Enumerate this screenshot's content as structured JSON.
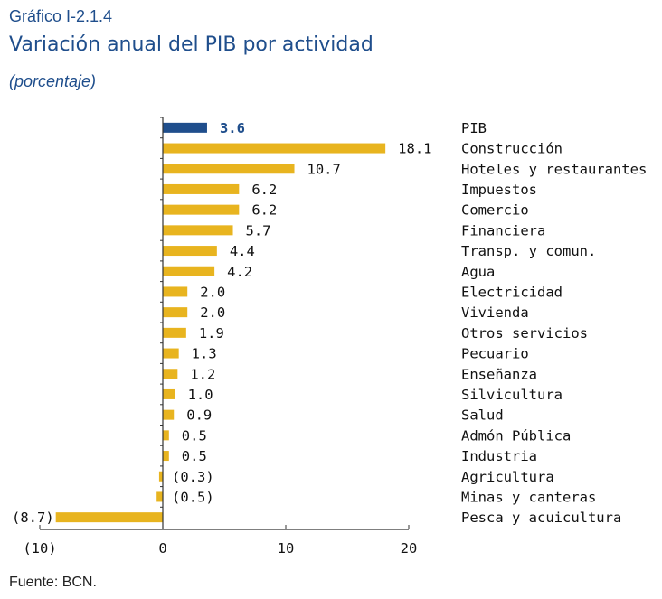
{
  "header": {
    "label": "Gráfico I-2.1.4",
    "title": "Variación anual del PIB por actividad",
    "subtitle": "(porcentaje)"
  },
  "source": "Fuente: BCN.",
  "colors": {
    "highlight": "#1f4e8c",
    "bar": "#e8b41f",
    "axis": "#333333",
    "title": "#1f4e8c"
  },
  "chart_data": {
    "type": "bar",
    "orientation": "horizontal",
    "categories": [
      "PIB",
      "Construcción",
      "Hoteles y restaurantes",
      "Impuestos",
      "Comercio",
      "Financiera",
      "Transp. y comun.",
      "Agua",
      "Electricidad",
      "Vivienda",
      "Otros servicios",
      "Pecuario",
      "Enseñanza",
      "Silvicultura",
      "Salud",
      "Admón Pública",
      "Industria",
      "Agricultura",
      "Minas y canteras",
      "Pesca y acuicultura"
    ],
    "values": [
      3.6,
      18.1,
      10.7,
      6.2,
      6.2,
      5.7,
      4.4,
      4.2,
      2.0,
      2.0,
      1.9,
      1.3,
      1.2,
      1.0,
      0.9,
      0.5,
      0.5,
      -0.3,
      -0.5,
      -8.7
    ],
    "value_labels": [
      "3.6",
      "18.1",
      "10.7",
      "6.2",
      "6.2",
      "5.7",
      "4.4",
      "4.2",
      "2.0",
      "2.0",
      "1.9",
      "1.3",
      "1.2",
      "1.0",
      "0.9",
      "0.5",
      "0.5",
      "(0.3)",
      "(0.5)",
      "(8.7)"
    ],
    "highlight_category": "PIB",
    "xlim": [
      -10,
      20
    ],
    "xticks": [
      -10,
      0,
      10,
      20
    ],
    "xtick_labels": [
      "(10)",
      "0",
      "10",
      "20"
    ],
    "grid": false,
    "legend": "none"
  }
}
